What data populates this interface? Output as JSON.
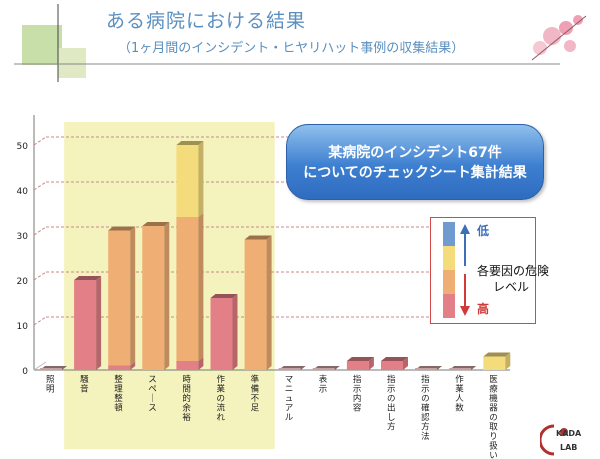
{
  "header": {
    "title": "ある病院における結果",
    "subtitle": "（1ヶ月間のインシデント・ヒヤリハット事例の収集結果）"
  },
  "callout": {
    "line1": "某病院のインシデント67件",
    "line2": "についてのチェックシート集計結果"
  },
  "legend": {
    "title_line1": "各要因の危険",
    "title_line2": "レベル",
    "low": "低",
    "high": "高"
  },
  "logo_text": "KADA LAB",
  "colors": {
    "pink": "#e37f86",
    "orange": "#efae73",
    "yellow": "#f4dc7d",
    "blue": "#6f9bd1",
    "highlight": "#f5f3bd",
    "grid": "#c98a8a"
  },
  "chart_data": {
    "type": "bar",
    "stacked": true,
    "ylim": [
      0,
      50
    ],
    "yticks": [
      "0",
      "10",
      "20",
      "30",
      "40",
      "50"
    ],
    "categories": [
      "照明",
      "騒音",
      "整理整頓",
      "スペース",
      "時間的余裕",
      "作業の流れ",
      "準備不足",
      "マニュアル",
      "表示",
      "指示内容",
      "指示の出し方",
      "指示の確認方法",
      "作業人数",
      "医療機器の取り扱い"
    ],
    "highlighted_categories": [
      "騒音",
      "整理整頓",
      "スペース",
      "時間的余裕",
      "作業の流れ",
      "準備不足"
    ],
    "series": [
      {
        "color": "pink",
        "values": [
          0,
          20,
          1,
          0,
          2,
          16,
          0,
          0,
          0,
          2,
          2,
          0,
          0,
          0
        ]
      },
      {
        "color": "orange",
        "values": [
          0,
          0,
          30,
          32,
          32,
          0,
          29,
          0,
          0,
          0,
          0,
          0,
          0,
          0
        ]
      },
      {
        "color": "yellow",
        "values": [
          0,
          0,
          0,
          0,
          16,
          0,
          0,
          0,
          0,
          0,
          0,
          0,
          0,
          3
        ]
      }
    ]
  }
}
